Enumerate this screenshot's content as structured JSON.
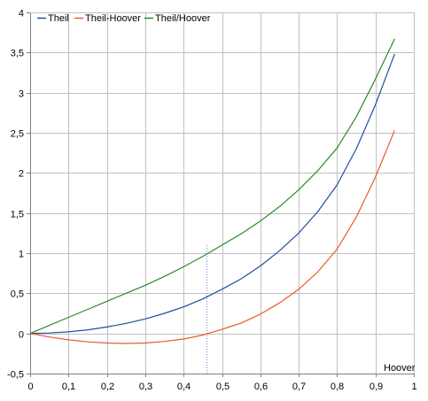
{
  "chart_data": {
    "type": "line",
    "title": "",
    "xlabel": "Hoover",
    "ylabel": "",
    "xlim": [
      0,
      1
    ],
    "ylim": [
      -0.5,
      4
    ],
    "grid": true,
    "legend_position": "top-left",
    "x_ticks": [
      "0",
      "0,1",
      "0,2",
      "0,3",
      "0,4",
      "0,5",
      "0,6",
      "0,7",
      "0,8",
      "0,9",
      "1"
    ],
    "y_ticks": [
      "-0,5",
      "0",
      "0,5",
      "1",
      "1,5",
      "2",
      "2,5",
      "3",
      "3,5",
      "4"
    ],
    "marker_line_x": 0.46,
    "x": [
      0,
      0.05,
      0.1,
      0.15,
      0.2,
      0.25,
      0.3,
      0.35,
      0.4,
      0.45,
      0.5,
      0.55,
      0.6,
      0.65,
      0.7,
      0.75,
      0.8,
      0.85,
      0.9,
      0.95
    ],
    "series": [
      {
        "name": "Theil",
        "color": "#1f4e9e",
        "values": [
          0,
          0.005,
          0.02,
          0.045,
          0.08,
          0.125,
          0.18,
          0.25,
          0.33,
          0.43,
          0.55,
          0.68,
          0.84,
          1.03,
          1.25,
          1.52,
          1.85,
          2.3,
          2.85,
          3.48
        ]
      },
      {
        "name": "Theil-Hoover",
        "color": "#e85a2a",
        "values": [
          0,
          -0.045,
          -0.08,
          -0.105,
          -0.12,
          -0.125,
          -0.12,
          -0.1,
          -0.07,
          -0.02,
          0.05,
          0.13,
          0.24,
          0.38,
          0.55,
          0.77,
          1.05,
          1.45,
          1.95,
          2.53
        ]
      },
      {
        "name": "Theil/Hoover",
        "color": "#2a8a2a",
        "values": [
          0,
          0.1,
          0.2,
          0.3,
          0.4,
          0.5,
          0.6,
          0.71,
          0.83,
          0.96,
          1.1,
          1.24,
          1.4,
          1.58,
          1.79,
          2.03,
          2.31,
          2.7,
          3.17,
          3.67
        ]
      }
    ]
  }
}
